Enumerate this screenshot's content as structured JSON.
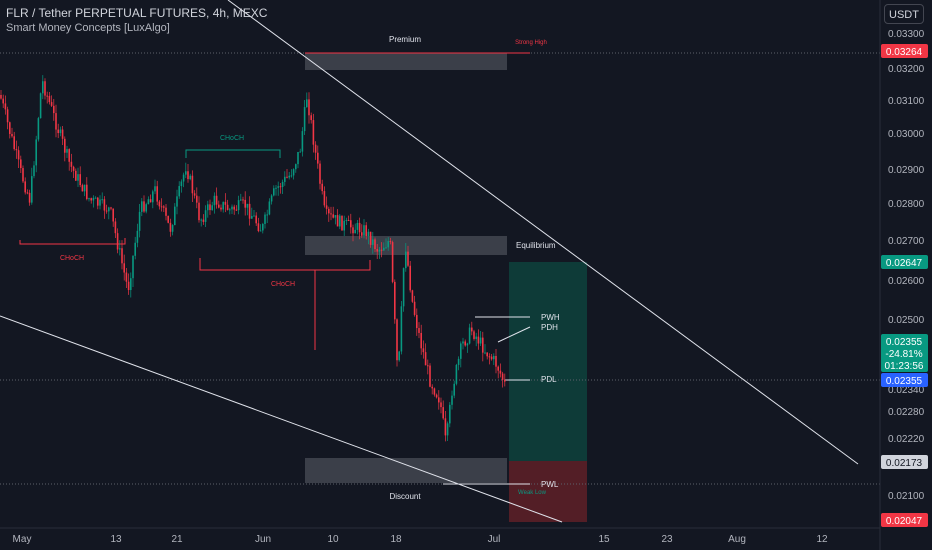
{
  "header": {
    "title": "FLR / Tether PERPETUAL FUTURES, 4h, MEXC",
    "indicator": "Smart Money Concepts [LuxAlgo]"
  },
  "toolbar": {
    "currency_label": "USDT"
  },
  "chart_data": {
    "type": "candlestick",
    "y_ticks": [
      "0.03300",
      "0.03200",
      "0.03100",
      "0.03000",
      "0.02900",
      "0.02800",
      "0.02700",
      "0.02600",
      "0.02500",
      "0.02340",
      "0.02280",
      "0.02220",
      "0.02100"
    ],
    "x_ticks": [
      "May",
      "13",
      "21",
      "Jun",
      "10",
      "18",
      "Jul",
      "15",
      "23",
      "Aug",
      "12"
    ],
    "price_tags": [
      {
        "label": "0.03264",
        "color": "#f23645"
      },
      {
        "label": "0.02647",
        "color": "#089981"
      },
      {
        "label": "0.02173",
        "color": "#b2b5be"
      },
      {
        "label": "0.02047",
        "color": "#f23645"
      }
    ],
    "current_price": {
      "price": "0.02355",
      "change": "-24.81%",
      "countdown": "01:23:56",
      "mark": "0.02355"
    },
    "annotations": {
      "premium": "Premium",
      "equilibrium": "Equilibrium",
      "discount": "Discount",
      "strong_high": "Strong High",
      "weak_low": "Weak Low",
      "pwh": "PWH",
      "pdh": "PDH",
      "pdl": "PDL",
      "pwl": "PWL",
      "choch": "CHoCH"
    },
    "colors": {
      "up": "#089981",
      "down": "#f23645",
      "bg": "#131722"
    }
  }
}
